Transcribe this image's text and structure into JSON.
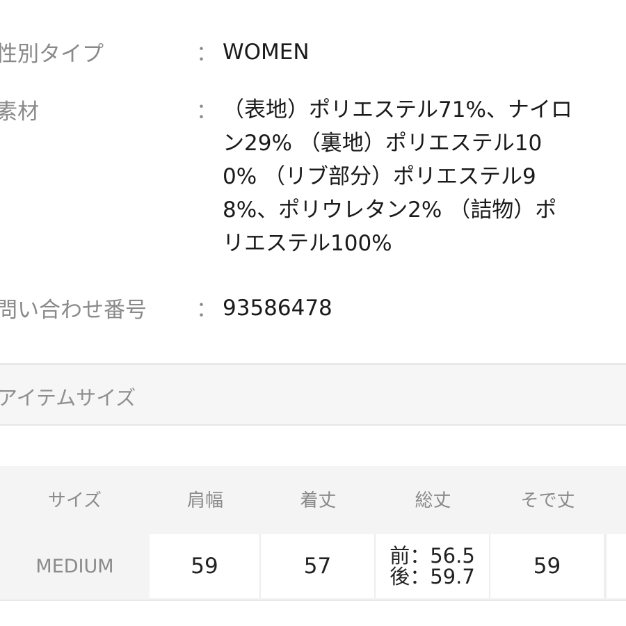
{
  "details": [
    {
      "label": "性別タイプ",
      "value_lines": [
        "WOMEN"
      ]
    },
    {
      "label": "素材",
      "value_lines": [
        "（表地）ポリエステル71%、ナイロ",
        "ン29% （裏地）ポリエステル10",
        "0% （リブ部分）ポリエステル9",
        "8%、ポリウレタン2% （詰物）ポ",
        "リエステル100%"
      ]
    },
    {
      "label": "問い合わせ番号",
      "value_lines": [
        "93586478"
      ]
    }
  ],
  "colon": "：",
  "size_section": {
    "title": "アイテムサイズ"
  },
  "size_table": {
    "headers": [
      "サイズ",
      "肩幅",
      "着丈",
      "総丈",
      "そで丈"
    ],
    "rows": [
      {
        "size": "MEDIUM",
        "shoulder": "59",
        "length": "57",
        "total_front": "前：56.5",
        "total_back": "後：59.7",
        "sleeve": "59"
      }
    ]
  }
}
